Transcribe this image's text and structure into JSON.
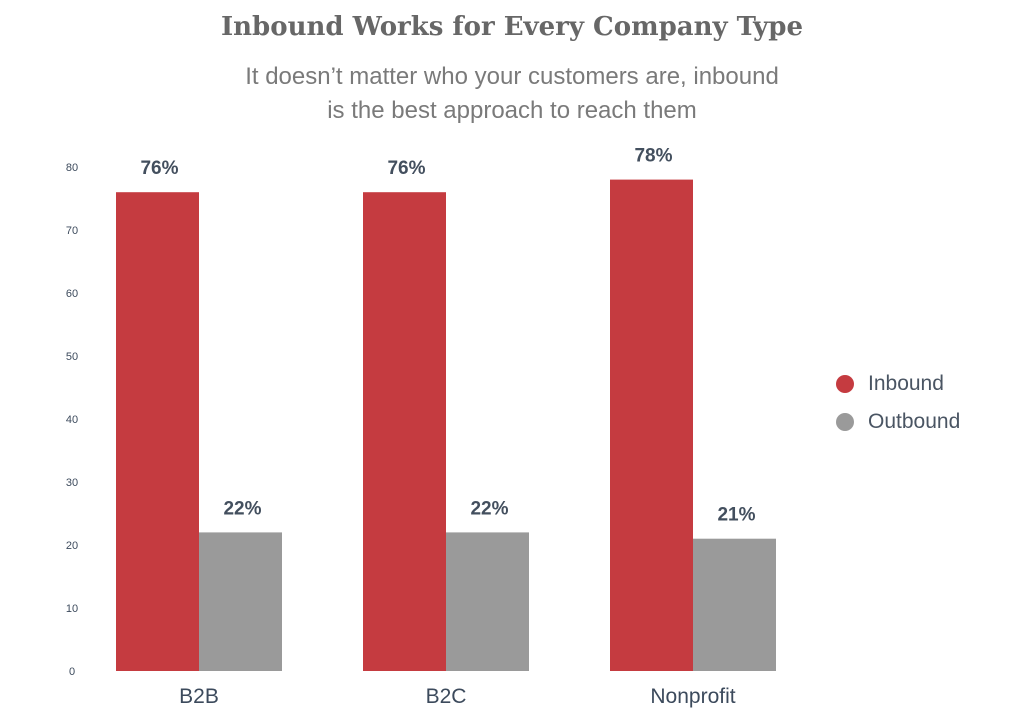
{
  "chart_data": {
    "type": "bar",
    "title": "Inbound Works for Every Company Type",
    "subtitle_lines": [
      "It doesn’t matter who your customers are, inbound",
      "is the best approach to reach them"
    ],
    "categories": [
      "B2B",
      "B2C",
      "Nonprofit"
    ],
    "series": [
      {
        "name": "Inbound",
        "values": [
          76,
          76,
          78
        ],
        "labels": [
          "76%",
          "76%",
          "78%"
        ],
        "color": "#c53b40"
      },
      {
        "name": "Outbound",
        "values": [
          22,
          22,
          21
        ],
        "labels": [
          "22%",
          "22%",
          "21%"
        ],
        "color": "#9a9a9a"
      }
    ],
    "ylim": [
      0,
      80
    ],
    "yticks": [
      0,
      10,
      20,
      30,
      40,
      50,
      60,
      70,
      80
    ],
    "grid": false,
    "legend_position": "right"
  }
}
